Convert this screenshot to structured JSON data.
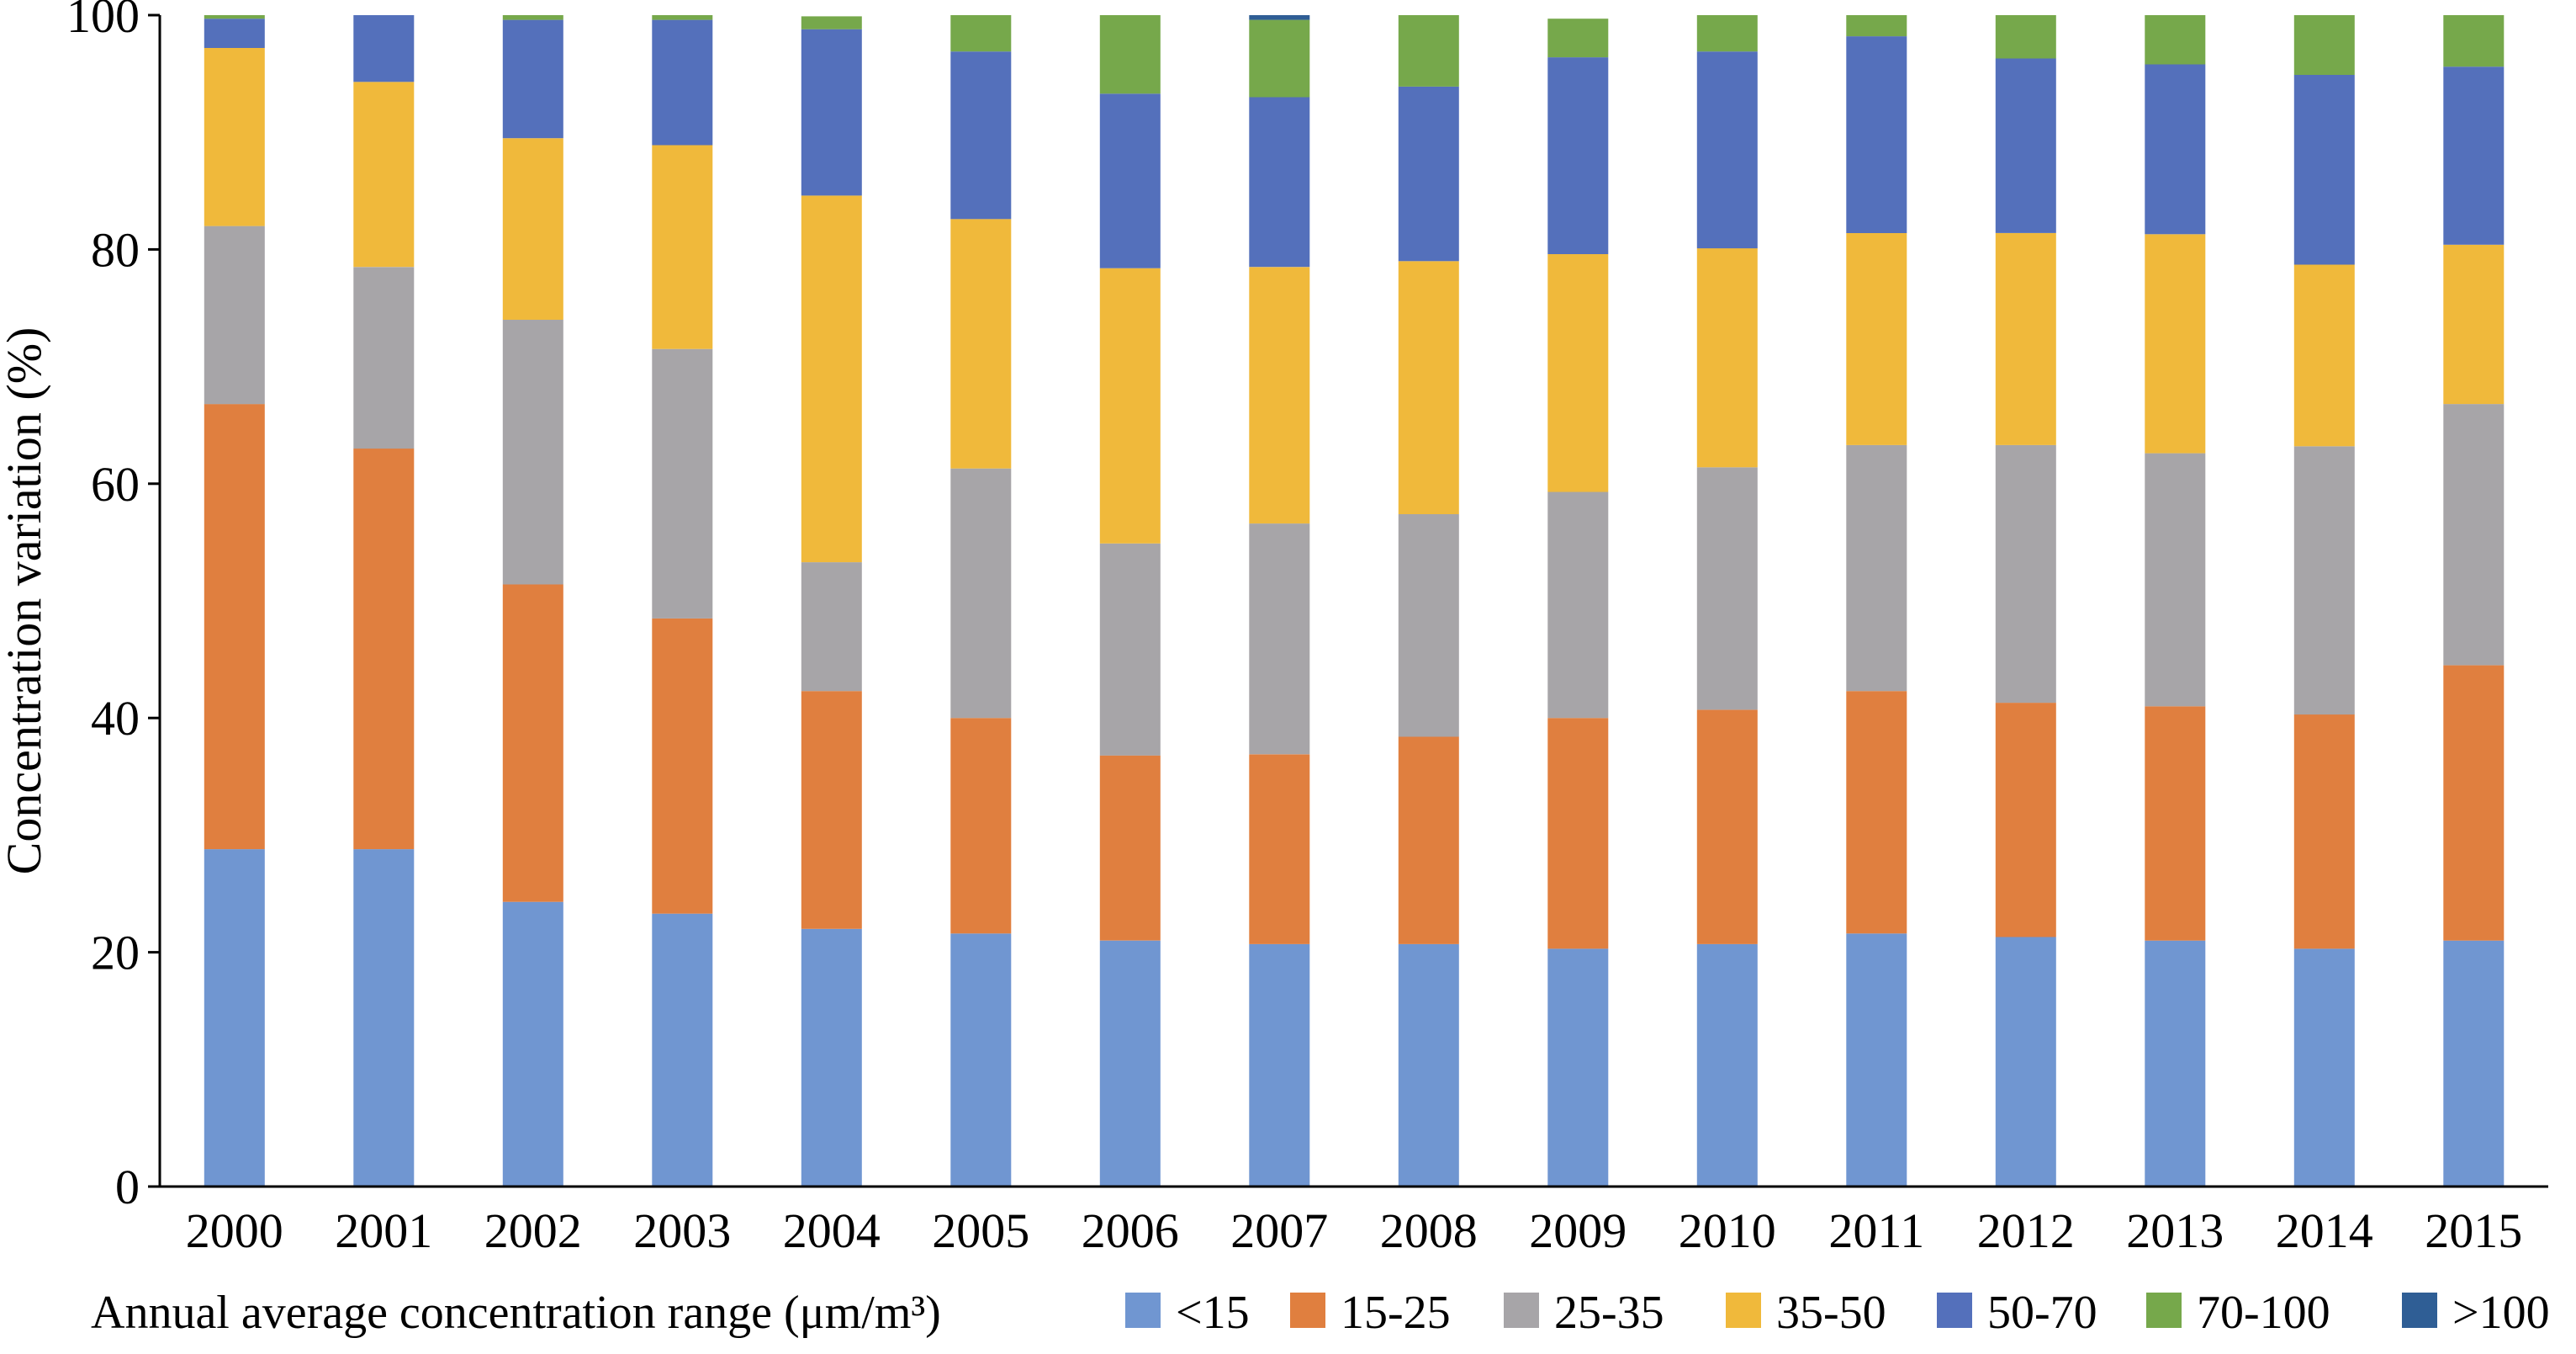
{
  "chart_data": {
    "type": "bar",
    "stacked": true,
    "title": "",
    "xlabel": "",
    "ylabel": "Concentration variation (%)",
    "ylim": [
      0,
      100
    ],
    "yticks": [
      0,
      20,
      40,
      60,
      80,
      100
    ],
    "grid": false,
    "legend_placement": "bottom",
    "legend_title": "Annual average concentration range (μm/m³)",
    "categories": [
      "2000",
      "2001",
      "2002",
      "2003",
      "2004",
      "2005",
      "2006",
      "2007",
      "2008",
      "2009",
      "2010",
      "2011",
      "2012",
      "2013",
      "2014",
      "2015"
    ],
    "series": [
      {
        "name": "<15",
        "color": "#7096d1",
        "values": [
          28.8,
          28.8,
          24.3,
          23.3,
          22.0,
          21.6,
          21.0,
          20.7,
          20.7,
          20.3,
          20.7,
          21.6,
          21.3,
          21.0,
          20.3,
          21.0
        ]
      },
      {
        "name": "15-25",
        "color": "#e07f3f",
        "values": [
          38.0,
          34.2,
          27.1,
          25.2,
          20.3,
          18.4,
          15.8,
          16.2,
          17.7,
          19.7,
          20.0,
          20.7,
          20.0,
          20.0,
          20.0,
          23.5
        ]
      },
      {
        "name": "25-35",
        "color": "#a7a5a8",
        "values": [
          15.2,
          15.5,
          22.6,
          23.0,
          11.0,
          21.3,
          18.1,
          19.7,
          19.0,
          19.3,
          20.7,
          21.0,
          22.0,
          21.6,
          22.9,
          22.3
        ]
      },
      {
        "name": "35-50",
        "color": "#f0b93b",
        "values": [
          15.2,
          15.8,
          15.5,
          17.4,
          31.3,
          21.3,
          23.5,
          21.9,
          21.6,
          20.3,
          18.7,
          18.1,
          18.1,
          18.7,
          15.5,
          13.6
        ]
      },
      {
        "name": "50-70",
        "color": "#5470bb",
        "values": [
          2.5,
          5.7,
          10.1,
          10.7,
          14.2,
          14.3,
          14.9,
          14.5,
          14.9,
          16.8,
          16.8,
          16.8,
          14.9,
          14.5,
          16.2,
          15.2
        ]
      },
      {
        "name": "70-100",
        "color": "#76a84b",
        "values": [
          0.3,
          0.0,
          0.4,
          0.4,
          1.1,
          3.1,
          6.7,
          6.6,
          6.1,
          3.3,
          3.1,
          1.8,
          3.7,
          4.2,
          5.1,
          4.4
        ]
      },
      {
        "name": ">100",
        "color": "#2f5e95",
        "values": [
          0.0,
          0.0,
          0.0,
          0.0,
          0.0,
          0.0,
          0.0,
          0.4,
          0.0,
          0.0,
          0.0,
          0.0,
          0.0,
          0.0,
          0.0,
          0.0
        ]
      }
    ]
  }
}
